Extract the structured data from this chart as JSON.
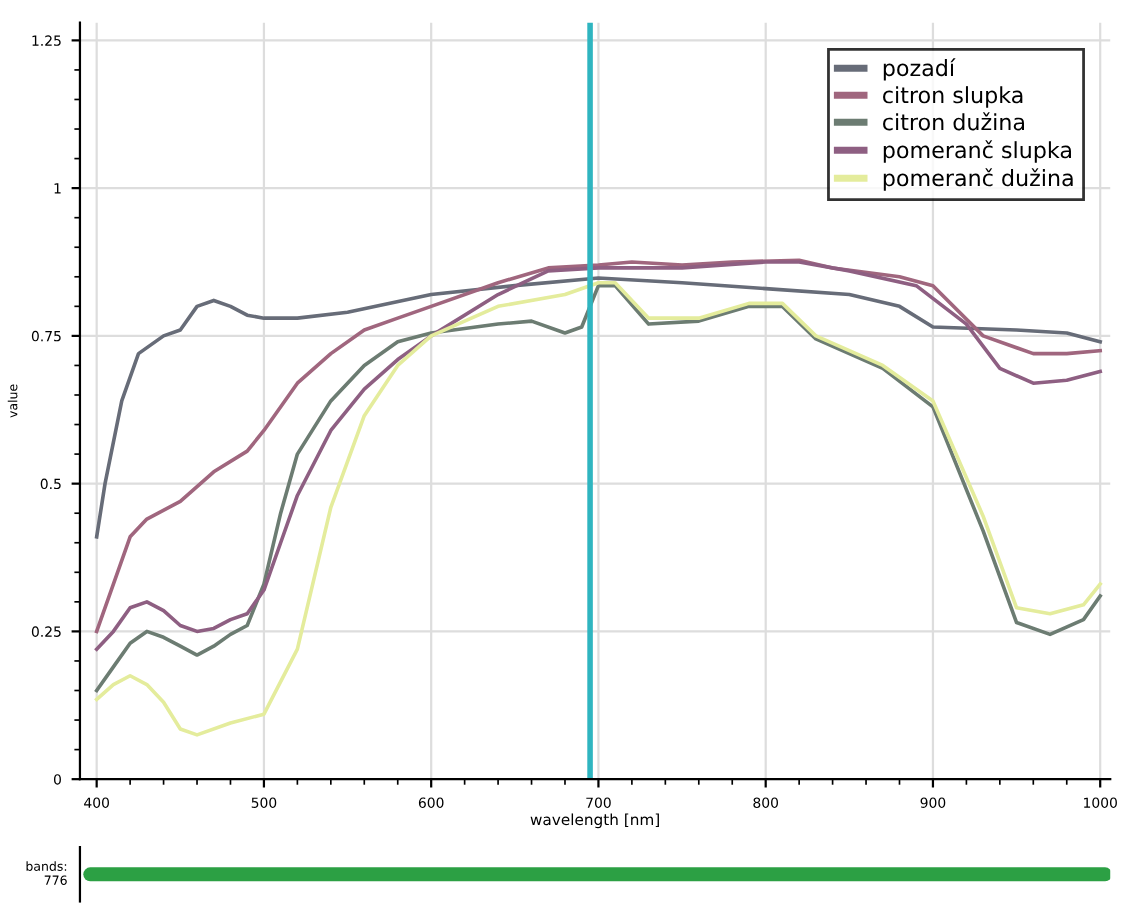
{
  "chart_data": [
    {
      "type": "line",
      "xlabel": "wavelength [nm]",
      "ylabel": "value",
      "xlim": [
        390,
        1006
      ],
      "ylim": [
        0,
        1.28
      ],
      "xticks": [
        400,
        500,
        600,
        700,
        800,
        900,
        1000
      ],
      "yticks": [
        0,
        0.25,
        {
          "value": 0.5,
          "label": "0.5"
        },
        0.75,
        {
          "value": 1,
          "label": "1"
        },
        1.25
      ],
      "grid": true,
      "legend": "top right",
      "line_style": "solid",
      "marker": "none",
      "ref_lines": [
        {
          "axis": "x",
          "value": 695,
          "color": "#2fb5c0"
        }
      ],
      "series": [
        {
          "name": "pozadí",
          "color": "#676c78",
          "x": [
            400,
            405,
            415,
            425,
            440,
            450,
            460,
            470,
            480,
            490,
            500,
            520,
            550,
            600,
            650,
            700,
            750,
            800,
            850,
            880,
            900,
            950,
            980,
            1000
          ],
          "values": [
            0.41,
            0.5,
            0.64,
            0.72,
            0.75,
            0.76,
            0.8,
            0.81,
            0.8,
            0.785,
            0.78,
            0.78,
            0.79,
            0.82,
            0.835,
            0.848,
            0.84,
            0.83,
            0.82,
            0.8,
            0.765,
            0.76,
            0.755,
            0.74
          ]
        },
        {
          "name": "citron slupka",
          "color": "#a0667e",
          "x": [
            400,
            410,
            420,
            430,
            450,
            470,
            490,
            500,
            520,
            540,
            560,
            580,
            600,
            640,
            670,
            700,
            720,
            750,
            780,
            820,
            840,
            880,
            900,
            930,
            960,
            980,
            1000
          ],
          "values": [
            0.25,
            0.33,
            0.41,
            0.44,
            0.47,
            0.52,
            0.555,
            0.59,
            0.67,
            0.72,
            0.76,
            0.78,
            0.8,
            0.84,
            0.865,
            0.87,
            0.875,
            0.87,
            0.875,
            0.878,
            0.865,
            0.85,
            0.835,
            0.75,
            0.72,
            0.72,
            0.725
          ]
        },
        {
          "name": "citron dužina",
          "color": "#6c7c72",
          "x": [
            400,
            410,
            420,
            430,
            440,
            450,
            460,
            470,
            480,
            490,
            500,
            510,
            520,
            540,
            560,
            580,
            600,
            640,
            660,
            680,
            690,
            700,
            710,
            730,
            760,
            790,
            810,
            830,
            870,
            900,
            930,
            950,
            970,
            990,
            1000
          ],
          "values": [
            0.15,
            0.19,
            0.23,
            0.25,
            0.24,
            0.225,
            0.21,
            0.225,
            0.245,
            0.26,
            0.33,
            0.45,
            0.55,
            0.64,
            0.7,
            0.74,
            0.755,
            0.77,
            0.775,
            0.755,
            0.765,
            0.835,
            0.835,
            0.77,
            0.775,
            0.8,
            0.8,
            0.745,
            0.695,
            0.63,
            0.42,
            0.265,
            0.245,
            0.27,
            0.31
          ]
        },
        {
          "name": "pomeranč slupka",
          "color": "#8e5f82",
          "x": [
            400,
            410,
            420,
            430,
            440,
            450,
            460,
            470,
            480,
            490,
            500,
            510,
            520,
            540,
            560,
            580,
            600,
            640,
            670,
            700,
            750,
            800,
            820,
            850,
            890,
            920,
            940,
            960,
            980,
            1000
          ],
          "values": [
            0.22,
            0.25,
            0.29,
            0.3,
            0.285,
            0.26,
            0.25,
            0.255,
            0.27,
            0.28,
            0.32,
            0.4,
            0.48,
            0.59,
            0.66,
            0.71,
            0.75,
            0.82,
            0.86,
            0.865,
            0.865,
            0.875,
            0.875,
            0.86,
            0.835,
            0.77,
            0.695,
            0.67,
            0.675,
            0.69
          ]
        },
        {
          "name": "pomeranč dužina",
          "color": "#e4ec9c",
          "x": [
            400,
            410,
            420,
            430,
            440,
            450,
            460,
            480,
            500,
            520,
            540,
            560,
            580,
            600,
            640,
            680,
            700,
            710,
            730,
            760,
            790,
            810,
            830,
            870,
            900,
            930,
            950,
            970,
            990,
            1000
          ],
          "values": [
            0.135,
            0.16,
            0.175,
            0.16,
            0.13,
            0.085,
            0.075,
            0.095,
            0.11,
            0.22,
            0.46,
            0.615,
            0.7,
            0.75,
            0.8,
            0.82,
            0.84,
            0.84,
            0.78,
            0.78,
            0.805,
            0.805,
            0.75,
            0.7,
            0.64,
            0.445,
            0.29,
            0.28,
            0.295,
            0.33
          ]
        }
      ]
    },
    {
      "type": "other",
      "annotations": [
        "bands:\n776"
      ]
    }
  ]
}
